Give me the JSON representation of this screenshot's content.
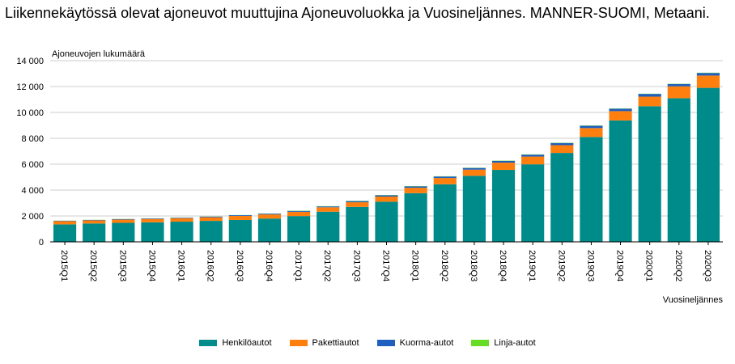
{
  "title": "Liikennekäytössä olevat ajoneuvot muuttujina Ajoneuvoluokka ja Vuosineljännes. MANNER-SUOMI, Metaani.",
  "chart_data": {
    "type": "bar",
    "stacked": true,
    "ylabel": "Ajoneuvojen lukumäärä",
    "xlabel": "Vuosineljännes",
    "ylim": [
      0,
      14000
    ],
    "yticks": [
      0,
      2000,
      4000,
      6000,
      8000,
      10000,
      12000,
      14000
    ],
    "ytick_labels": [
      "0",
      "2 000",
      "4 000",
      "6 000",
      "8 000",
      "10 000",
      "12 000",
      "14 000"
    ],
    "grid": true,
    "legend_position": "bottom",
    "categories": [
      "2015Q1",
      "2015Q2",
      "2015Q3",
      "2015Q4",
      "2016Q1",
      "2016Q2",
      "2016Q3",
      "2016Q4",
      "2017Q1",
      "2017Q2",
      "2017Q3",
      "2017Q4",
      "2018Q1",
      "2018Q2",
      "2018Q3",
      "2018Q4",
      "2019Q1",
      "2019Q2",
      "2019Q3",
      "2019Q4",
      "2020Q1",
      "2020Q2",
      "2020Q3"
    ],
    "series": [
      {
        "name": "Henkilöautot",
        "color": "#008b8b",
        "values": [
          1350,
          1420,
          1470,
          1510,
          1560,
          1620,
          1690,
          1800,
          1990,
          2330,
          2700,
          3100,
          3760,
          4450,
          5100,
          5560,
          5990,
          6870,
          8100,
          9380,
          10480,
          11100,
          11900
        ]
      },
      {
        "name": "Pakettiautot",
        "color": "#ff7f0e",
        "values": [
          250,
          240,
          250,
          260,
          270,
          280,
          310,
          320,
          330,
          340,
          360,
          400,
          420,
          480,
          480,
          560,
          600,
          600,
          690,
          720,
          740,
          920,
          950
        ]
      },
      {
        "name": "Kuorma-autot",
        "color": "#1f5fbf",
        "values": [
          30,
          30,
          40,
          40,
          40,
          50,
          60,
          60,
          70,
          70,
          90,
          100,
          110,
          120,
          130,
          140,
          150,
          170,
          180,
          190,
          210,
          180,
          200
        ]
      },
      {
        "name": "Linja-autot",
        "color": "#66dd22",
        "values": [
          10,
          10,
          10,
          10,
          10,
          10,
          10,
          10,
          20,
          20,
          20,
          20,
          20,
          20,
          20,
          20,
          20,
          20,
          20,
          20,
          20,
          20,
          20
        ]
      }
    ]
  }
}
